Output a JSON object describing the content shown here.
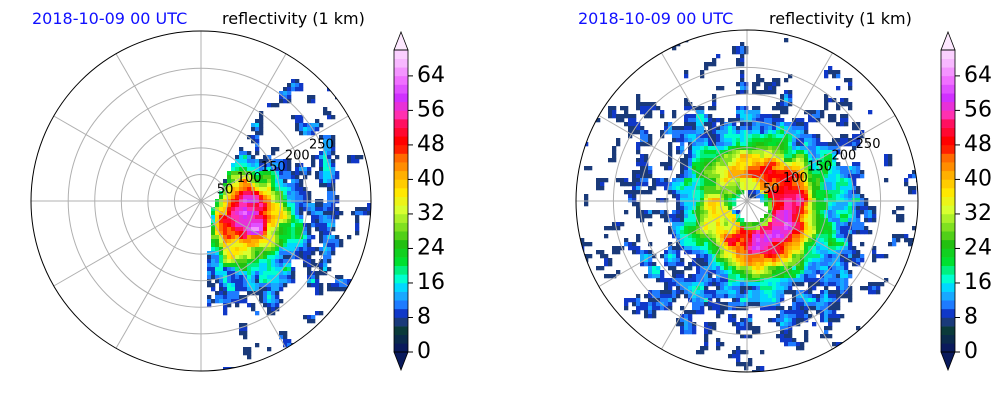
{
  "colors": {
    "title_date": "#1010ff",
    "title_main": "#000000",
    "range_ring": "#b0b0b0",
    "frame": "#000000"
  },
  "chart_data": [
    {
      "type": "heatmap",
      "projection": "polar",
      "title_left": "2018-10-09 00 UTC",
      "title_right": "reflectivity (1 km)",
      "range_rings": [
        50,
        100,
        150,
        200,
        250
      ],
      "range_ring_labels": [
        "50",
        "100",
        "150",
        "200",
        "250"
      ],
      "radial_lines_deg": [
        0,
        30,
        60,
        90,
        120,
        150,
        180,
        210,
        240,
        270,
        300,
        330
      ],
      "max_range": 320,
      "grid": true,
      "eye_radius": 0,
      "coverage": "sparse-west",
      "colorbar": {
        "ticks": [
          "0",
          "8",
          "16",
          "24",
          "32",
          "40",
          "48",
          "56",
          "64"
        ],
        "vmin": 0,
        "vmax": 70,
        "step": 2,
        "extend": "both"
      }
    },
    {
      "type": "heatmap",
      "projection": "polar",
      "title_left": "2018-10-09 00 UTC",
      "title_right": "reflectivity (1 km)",
      "range_rings": [
        50,
        100,
        150,
        200,
        250
      ],
      "range_ring_labels": [
        "50",
        "100",
        "150",
        "200",
        "250"
      ],
      "radial_lines_deg": [
        0,
        30,
        60,
        90,
        120,
        150,
        180,
        210,
        240,
        270,
        300,
        330
      ],
      "max_range": 320,
      "grid": true,
      "eye_radius": 25,
      "coverage": "full",
      "colorbar": {
        "ticks": [
          "0",
          "8",
          "16",
          "24",
          "32",
          "40",
          "48",
          "56",
          "64"
        ],
        "vmin": 0,
        "vmax": 70,
        "step": 2,
        "extend": "both"
      }
    }
  ]
}
